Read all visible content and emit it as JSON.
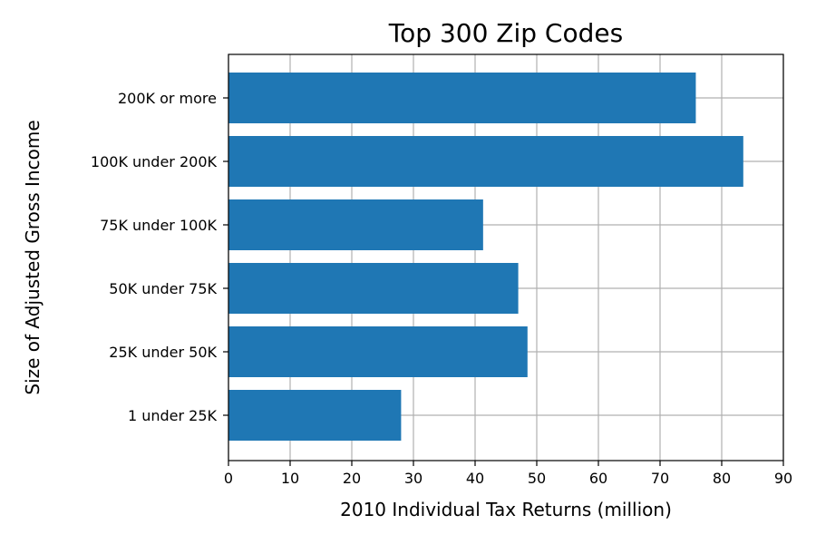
{
  "chart_data": {
    "type": "bar",
    "orientation": "horizontal",
    "title": "Top 300 Zip Codes",
    "xlabel": "2010 Individual Tax Returns (million)",
    "ylabel": "Size of Adjusted Gross Income",
    "categories": [
      "1 under 25K",
      "25K under 50K",
      "50K under 75K",
      "75K under 100K",
      "100K under 200K",
      "200K or more"
    ],
    "values": [
      28.0,
      48.5,
      47.0,
      41.3,
      83.5,
      75.8
    ],
    "xlim": [
      0,
      90
    ],
    "xticks": [
      0,
      10,
      20,
      30,
      40,
      50,
      60,
      70,
      80,
      90
    ],
    "grid": true,
    "bar_color": "#1f77b4"
  }
}
